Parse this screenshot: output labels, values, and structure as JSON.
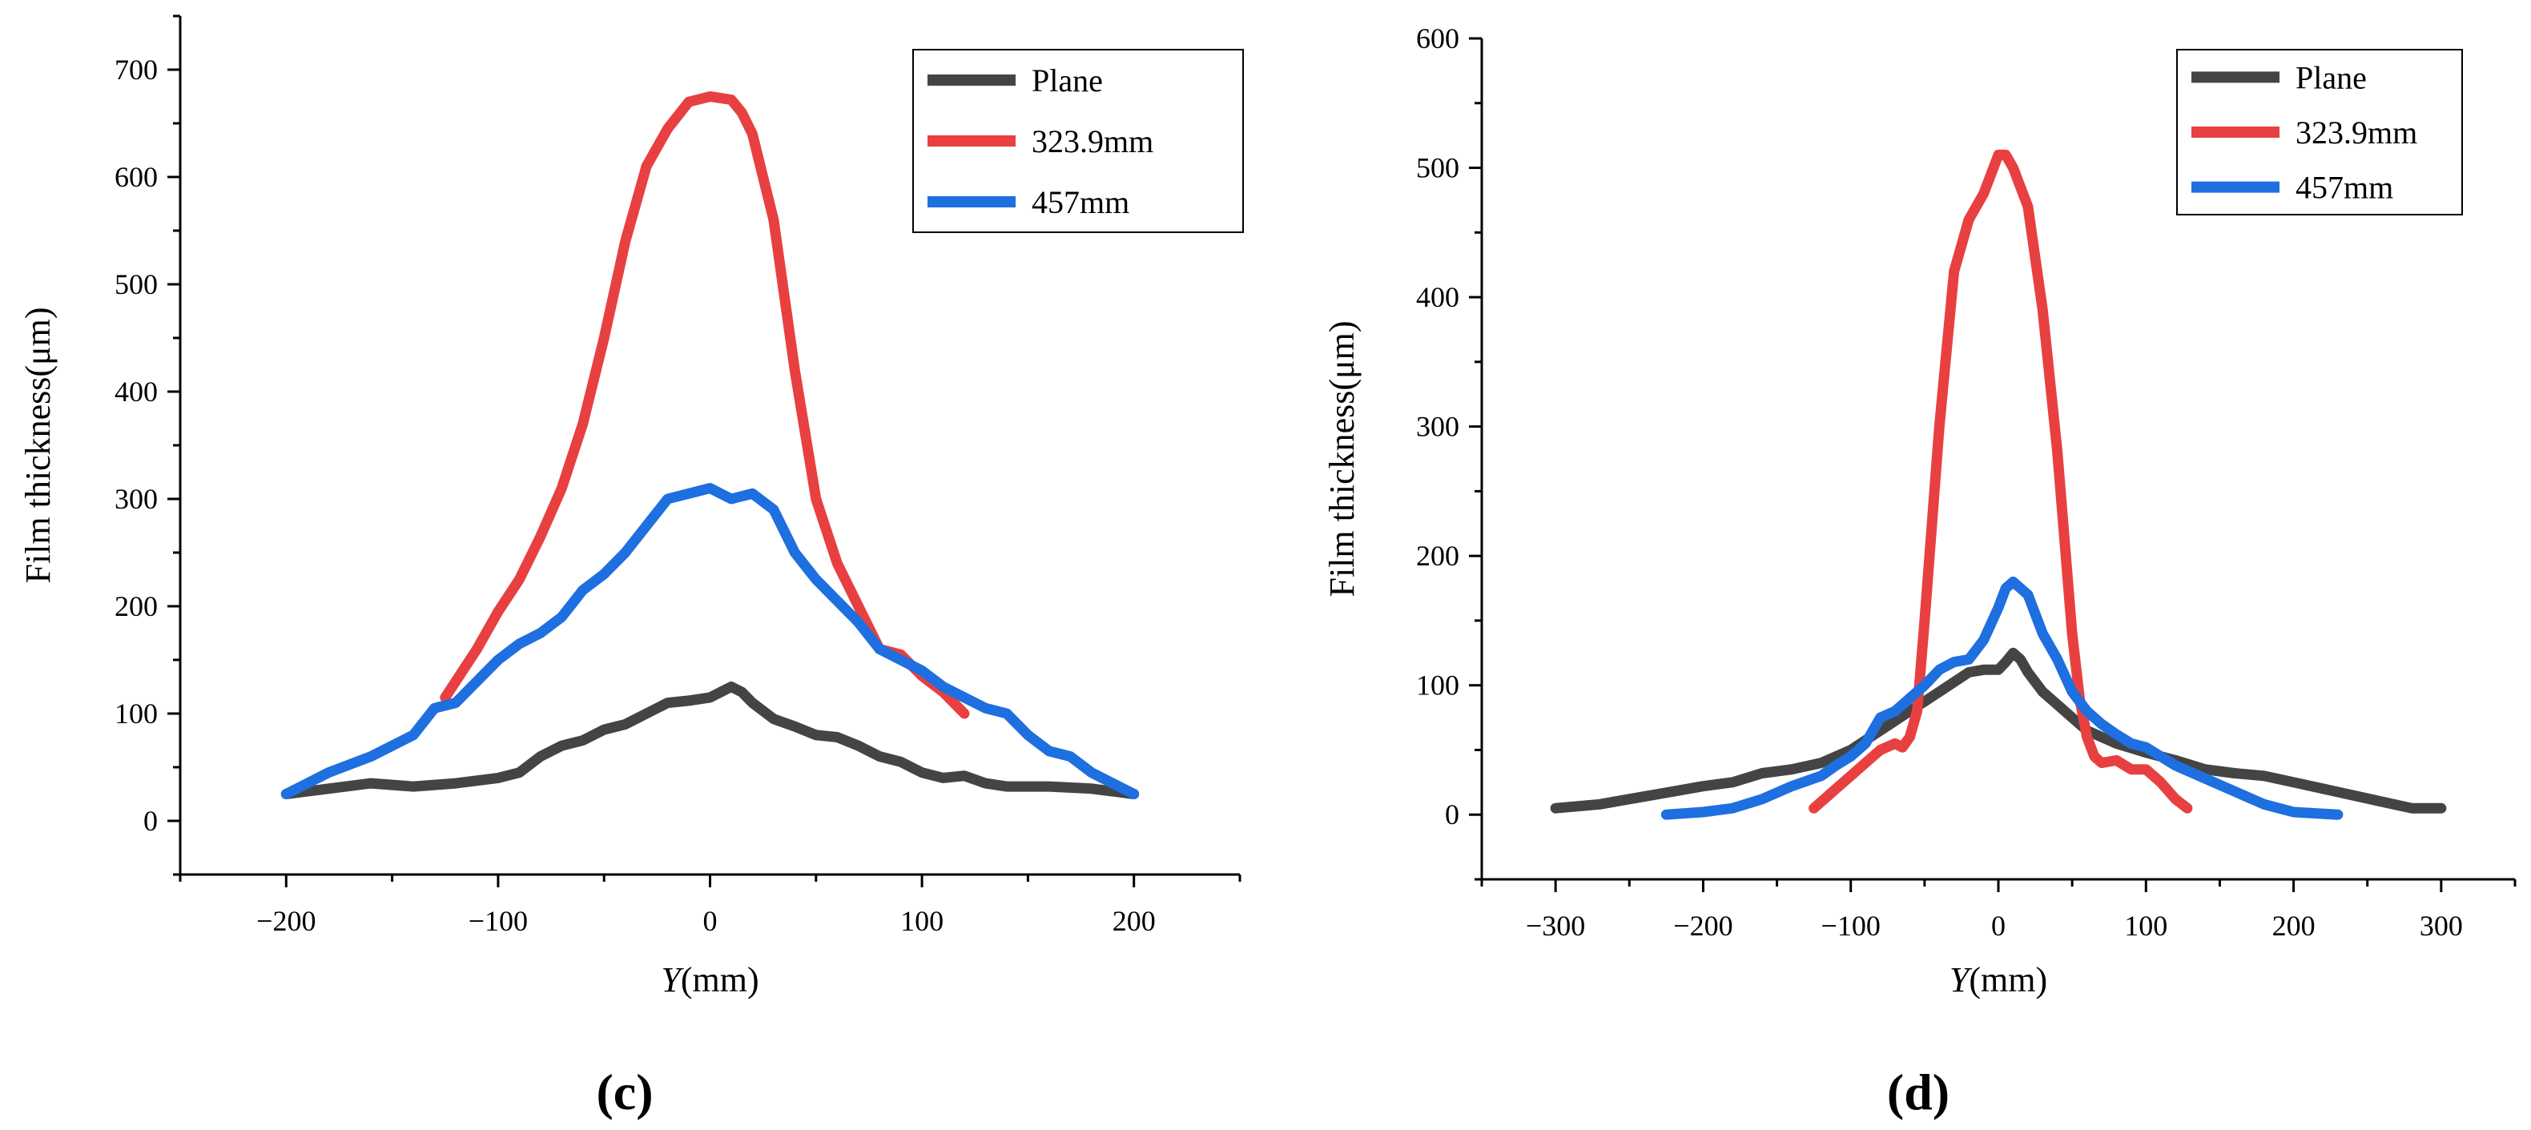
{
  "colors": {
    "plane": "#444444",
    "d323": "#e84040",
    "d457": "#1e6fe0"
  },
  "chart_data": [
    {
      "type": "line",
      "panel_label": "(c)",
      "xlabel": "Y(mm)",
      "ylabel": "Film thickness(μm)",
      "xlim": [
        -250,
        250
      ],
      "ylim": [
        -50,
        750
      ],
      "xticks": [
        -200,
        -100,
        0,
        100,
        200
      ],
      "yticks": [
        0,
        100,
        200,
        300,
        400,
        500,
        600,
        700
      ],
      "grid": false,
      "legend_position": "top-right",
      "series": [
        {
          "name": "Plane",
          "color": "#444444",
          "x": [
            -200,
            -180,
            -160,
            -140,
            -120,
            -100,
            -90,
            -80,
            -70,
            -60,
            -50,
            -40,
            -30,
            -20,
            -10,
            0,
            5,
            10,
            15,
            20,
            30,
            40,
            50,
            60,
            70,
            80,
            90,
            100,
            110,
            120,
            130,
            140,
            160,
            180,
            200
          ],
          "y": [
            25,
            30,
            35,
            32,
            35,
            40,
            45,
            60,
            70,
            75,
            85,
            90,
            100,
            110,
            112,
            115,
            120,
            125,
            120,
            110,
            95,
            88,
            80,
            78,
            70,
            60,
            55,
            45,
            40,
            42,
            35,
            32,
            32,
            30,
            25
          ]
        },
        {
          "name": "323.9mm",
          "color": "#e84040",
          "x": [
            -125,
            -110,
            -100,
            -90,
            -80,
            -70,
            -60,
            -50,
            -40,
            -30,
            -20,
            -10,
            0,
            10,
            15,
            20,
            30,
            40,
            50,
            60,
            70,
            80,
            90,
            100,
            110,
            120
          ],
          "y": [
            115,
            160,
            195,
            225,
            265,
            310,
            370,
            450,
            540,
            610,
            645,
            670,
            675,
            672,
            660,
            640,
            560,
            420,
            300,
            240,
            200,
            160,
            155,
            135,
            120,
            100
          ]
        },
        {
          "name": "457mm",
          "color": "#1e6fe0",
          "x": [
            -200,
            -180,
            -160,
            -140,
            -130,
            -120,
            -110,
            -100,
            -90,
            -80,
            -70,
            -60,
            -50,
            -40,
            -30,
            -20,
            -10,
            0,
            10,
            20,
            30,
            40,
            50,
            60,
            70,
            80,
            90,
            100,
            110,
            120,
            130,
            140,
            150,
            160,
            170,
            180,
            200
          ],
          "y": [
            25,
            45,
            60,
            80,
            105,
            110,
            130,
            150,
            165,
            175,
            190,
            215,
            230,
            250,
            275,
            300,
            305,
            310,
            300,
            305,
            290,
            250,
            225,
            205,
            185,
            160,
            150,
            140,
            125,
            115,
            105,
            100,
            80,
            65,
            60,
            45,
            25
          ]
        }
      ]
    },
    {
      "type": "line",
      "panel_label": "(d)",
      "xlabel": "Y(mm)",
      "ylabel": "Film thickness(μm)",
      "xlim": [
        -350,
        350
      ],
      "ylim": [
        -50,
        600
      ],
      "xticks": [
        -300,
        -200,
        -100,
        0,
        100,
        200,
        300
      ],
      "yticks": [
        0,
        100,
        200,
        300,
        400,
        500,
        600
      ],
      "grid": false,
      "legend_position": "top-right",
      "series": [
        {
          "name": "Plane",
          "color": "#444444",
          "x": [
            -300,
            -270,
            -250,
            -220,
            -200,
            -180,
            -160,
            -140,
            -120,
            -100,
            -80,
            -60,
            -40,
            -20,
            -10,
            0,
            5,
            10,
            15,
            20,
            30,
            40,
            50,
            60,
            80,
            100,
            120,
            140,
            160,
            180,
            200,
            220,
            240,
            260,
            280,
            300
          ],
          "y": [
            5,
            8,
            12,
            18,
            22,
            25,
            32,
            35,
            40,
            50,
            65,
            80,
            95,
            110,
            112,
            112,
            118,
            125,
            120,
            110,
            95,
            85,
            75,
            65,
            55,
            48,
            42,
            35,
            32,
            30,
            25,
            20,
            15,
            10,
            5,
            5
          ]
        },
        {
          "name": "323.9mm",
          "color": "#e84040",
          "x": [
            -125,
            -110,
            -100,
            -90,
            -80,
            -70,
            -65,
            -60,
            -55,
            -50,
            -40,
            -30,
            -20,
            -10,
            0,
            5,
            10,
            20,
            30,
            40,
            50,
            55,
            60,
            65,
            70,
            80,
            90,
            100,
            110,
            120,
            128
          ],
          "y": [
            5,
            20,
            30,
            40,
            50,
            55,
            52,
            60,
            80,
            150,
            300,
            420,
            460,
            480,
            510,
            510,
            500,
            470,
            390,
            280,
            140,
            90,
            60,
            45,
            40,
            42,
            35,
            35,
            25,
            12,
            5
          ]
        },
        {
          "name": "457mm",
          "color": "#1e6fe0",
          "x": [
            -225,
            -200,
            -180,
            -160,
            -140,
            -120,
            -110,
            -100,
            -90,
            -80,
            -70,
            -60,
            -50,
            -40,
            -30,
            -20,
            -10,
            0,
            5,
            10,
            15,
            20,
            30,
            40,
            50,
            60,
            70,
            80,
            90,
            100,
            110,
            120,
            140,
            160,
            180,
            200,
            230
          ],
          "y": [
            0,
            2,
            5,
            12,
            22,
            30,
            38,
            45,
            55,
            75,
            80,
            90,
            100,
            112,
            118,
            120,
            135,
            160,
            175,
            180,
            175,
            170,
            140,
            120,
            95,
            80,
            70,
            62,
            55,
            52,
            45,
            38,
            28,
            18,
            8,
            2,
            0
          ]
        }
      ]
    }
  ]
}
